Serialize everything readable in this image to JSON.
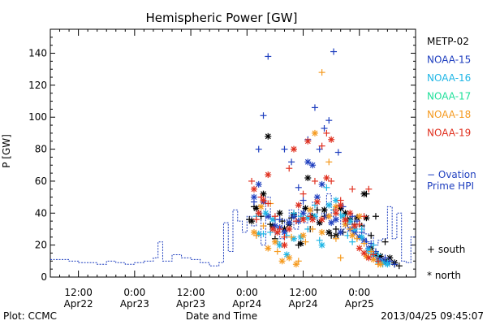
{
  "chart_data": {
    "type": "scatter",
    "title": "Hemispheric Power [GW]",
    "ylabel": "P [GW]",
    "xlabel": "Date and Time",
    "ylim": [
      0,
      155
    ],
    "yticks": [
      0,
      20,
      40,
      60,
      80,
      100,
      120,
      140
    ],
    "xlim_hours": [
      -18,
      60
    ],
    "xticks": [
      {
        "t": -12,
        "line1": "12:00",
        "line2": "Apr22"
      },
      {
        "t": 0,
        "line1": "0:00",
        "line2": "Apr23"
      },
      {
        "t": 12,
        "line1": "12:00",
        "line2": "Apr23"
      },
      {
        "t": 24,
        "line1": "0:00",
        "line2": "Apr24"
      },
      {
        "t": 36,
        "line1": "12:00",
        "line2": "Apr24"
      },
      {
        "t": 48,
        "line1": "0:00",
        "line2": "Apr25"
      }
    ],
    "legend": [
      {
        "name": "METP-02",
        "color": "#000000"
      },
      {
        "name": "NOAA-15",
        "color": "#1f3fbf"
      },
      {
        "name": "NOAA-16",
        "color": "#1fb6e6"
      },
      {
        "name": "NOAA-17",
        "color": "#1fe09a"
      },
      {
        "name": "NOAA-18",
        "color": "#f59a1f"
      },
      {
        "name": "NOAA-19",
        "color": "#e0301f"
      }
    ],
    "ovation": {
      "name": "− Ovation\nPrime HPI",
      "line1": "− Ovation",
      "line2": "Prime HPI",
      "color": "#1f3fbf",
      "steps": [
        [
          -18,
          11
        ],
        [
          -14,
          10
        ],
        [
          -12,
          9
        ],
        [
          -10,
          9
        ],
        [
          -8,
          8
        ],
        [
          -6,
          10
        ],
        [
          -4,
          9
        ],
        [
          -2,
          8
        ],
        [
          0,
          9
        ],
        [
          2,
          10
        ],
        [
          4,
          12
        ],
        [
          5,
          22
        ],
        [
          6,
          10
        ],
        [
          8,
          14
        ],
        [
          10,
          12
        ],
        [
          12,
          11
        ],
        [
          14,
          9
        ],
        [
          16,
          7
        ],
        [
          18,
          9
        ],
        [
          19,
          34
        ],
        [
          20,
          16
        ],
        [
          21,
          42
        ],
        [
          22,
          35
        ],
        [
          23,
          28
        ],
        [
          24,
          38
        ],
        [
          25,
          32
        ],
        [
          26,
          44
        ],
        [
          27,
          20
        ],
        [
          28,
          50
        ],
        [
          29,
          36
        ],
        [
          30,
          27
        ],
        [
          31,
          24
        ],
        [
          32,
          36
        ],
        [
          33,
          42
        ],
        [
          34,
          30
        ],
        [
          35,
          46
        ],
        [
          36,
          34
        ],
        [
          37,
          40
        ],
        [
          38,
          47
        ],
        [
          39,
          33
        ],
        [
          40,
          40
        ],
        [
          41,
          52
        ],
        [
          42,
          38
        ],
        [
          43,
          45
        ],
        [
          44,
          30
        ],
        [
          45,
          40
        ],
        [
          46,
          34
        ],
        [
          47,
          36
        ],
        [
          48,
          33
        ],
        [
          49,
          27
        ],
        [
          50,
          26
        ],
        [
          51,
          20
        ],
        [
          52,
          23
        ],
        [
          53,
          24
        ],
        [
          54,
          44
        ],
        [
          55,
          24
        ],
        [
          56,
          40
        ],
        [
          57,
          10
        ],
        [
          58,
          9
        ],
        [
          59,
          25
        ]
      ]
    },
    "series": [
      {
        "name": "METP-02",
        "color": "#000000",
        "plus": [
          [
            24.5,
            36
          ],
          [
            25.5,
            44
          ],
          [
            27,
            38
          ],
          [
            29,
            33
          ],
          [
            30,
            24
          ],
          [
            31.5,
            35
          ],
          [
            33.5,
            37
          ],
          [
            35,
            20
          ],
          [
            36,
            37
          ],
          [
            37.5,
            30
          ],
          [
            39,
            42
          ],
          [
            40.5,
            38
          ],
          [
            42,
            26
          ],
          [
            43,
            30
          ],
          [
            44.5,
            28
          ],
          [
            45.5,
            36
          ],
          [
            47,
            33
          ],
          [
            48.5,
            32
          ],
          [
            49.5,
            52
          ],
          [
            50.5,
            26
          ],
          [
            51.5,
            38
          ],
          [
            52.5,
            12
          ],
          [
            53.5,
            22
          ],
          [
            54.5,
            10
          ],
          [
            55.5,
            8
          ],
          [
            56.5,
            7
          ]
        ],
        "star": [
          [
            25,
            35
          ],
          [
            26,
            43
          ],
          [
            27.5,
            52
          ],
          [
            28.5,
            88
          ],
          [
            29.5,
            32
          ],
          [
            31,
            40
          ],
          [
            32,
            30
          ],
          [
            33,
            33
          ],
          [
            34,
            39
          ],
          [
            35.5,
            21
          ],
          [
            36.5,
            43
          ],
          [
            37,
            62
          ],
          [
            38,
            38
          ],
          [
            39.5,
            34
          ],
          [
            40.5,
            42
          ],
          [
            41.5,
            28
          ],
          [
            43,
            26
          ],
          [
            44,
            43
          ],
          [
            45,
            40
          ],
          [
            46,
            36
          ],
          [
            47.5,
            37
          ],
          [
            49,
            52
          ],
          [
            49.5,
            37
          ],
          [
            50.5,
            18
          ],
          [
            51.5,
            14
          ],
          [
            52.5,
            13
          ],
          [
            53.5,
            10
          ],
          [
            54.5,
            12
          ],
          [
            55.5,
            9
          ]
        ]
      },
      {
        "name": "NOAA-15",
        "color": "#1f3fbf",
        "plus": [
          [
            25.5,
            47
          ],
          [
            26.5,
            80
          ],
          [
            27.5,
            101
          ],
          [
            28.5,
            138
          ],
          [
            30,
            36
          ],
          [
            31,
            36
          ],
          [
            32,
            80
          ],
          [
            33.5,
            72
          ],
          [
            35,
            56
          ],
          [
            36,
            48
          ],
          [
            37,
            86
          ],
          [
            38.5,
            106
          ],
          [
            39.5,
            80
          ],
          [
            40.5,
            93
          ],
          [
            41.5,
            98
          ],
          [
            42.5,
            141
          ],
          [
            43.5,
            78
          ],
          [
            44.5,
            44
          ],
          [
            45.5,
            33
          ],
          [
            46.5,
            38
          ],
          [
            47.5,
            35
          ],
          [
            48.5,
            28
          ],
          [
            49.5,
            22
          ],
          [
            50.5,
            21
          ],
          [
            51.5,
            16
          ],
          [
            52.5,
            10
          ],
          [
            53.5,
            12
          ],
          [
            54.5,
            10
          ],
          [
            55.5,
            8
          ]
        ],
        "star": [
          [
            25.5,
            50
          ],
          [
            26.5,
            58
          ],
          [
            27.5,
            47
          ],
          [
            28.5,
            38
          ],
          [
            30,
            32
          ],
          [
            31,
            31
          ],
          [
            32,
            28
          ],
          [
            33,
            34
          ],
          [
            34,
            38
          ],
          [
            35,
            35
          ],
          [
            36,
            40
          ],
          [
            37,
            72
          ],
          [
            38,
            70
          ],
          [
            39,
            50
          ],
          [
            40,
            58
          ],
          [
            41,
            38
          ],
          [
            42,
            34
          ],
          [
            43,
            36
          ],
          [
            44,
            28
          ],
          [
            45,
            33
          ],
          [
            46,
            30
          ],
          [
            47,
            28
          ],
          [
            48,
            25
          ],
          [
            49,
            23
          ],
          [
            50,
            18
          ],
          [
            51,
            14
          ],
          [
            52,
            11
          ],
          [
            53,
            10
          ],
          [
            54,
            9
          ]
        ]
      },
      {
        "name": "NOAA-16",
        "color": "#1fb6e6",
        "plus": [
          [
            26,
            38
          ],
          [
            27.5,
            27
          ],
          [
            29,
            28
          ],
          [
            30.5,
            22
          ],
          [
            32.5,
            26
          ],
          [
            34,
            40
          ],
          [
            35.5,
            38
          ],
          [
            37,
            30
          ],
          [
            38.5,
            45
          ],
          [
            39.5,
            23
          ],
          [
            41,
            56
          ],
          [
            42.5,
            42
          ],
          [
            44,
            39
          ],
          [
            45.5,
            26
          ],
          [
            46.5,
            22
          ],
          [
            48.5,
            30
          ],
          [
            50,
            15
          ],
          [
            51,
            20
          ],
          [
            52,
            14
          ],
          [
            53,
            8
          ],
          [
            54,
            9
          ]
        ],
        "star": [
          [
            26.5,
            27
          ],
          [
            28,
            40
          ],
          [
            29.5,
            36
          ],
          [
            31,
            20
          ],
          [
            32.5,
            14
          ],
          [
            34,
            24
          ],
          [
            35.5,
            25
          ],
          [
            37,
            37
          ],
          [
            38.5,
            38
          ],
          [
            40,
            20
          ],
          [
            41.5,
            45
          ],
          [
            43,
            48
          ],
          [
            44.5,
            38
          ],
          [
            46,
            35
          ],
          [
            47,
            30
          ],
          [
            48.5,
            25
          ],
          [
            50,
            17
          ],
          [
            51,
            14
          ],
          [
            52,
            10
          ],
          [
            53,
            9
          ],
          [
            54,
            8
          ]
        ]
      },
      {
        "name": "NOAA-17",
        "color": "#1fe09a",
        "plus": [],
        "star": []
      },
      {
        "name": "NOAA-18",
        "color": "#f59a1f",
        "plus": [
          [
            26,
            26
          ],
          [
            27.5,
            32
          ],
          [
            29,
            46
          ],
          [
            30.5,
            16
          ],
          [
            32,
            20
          ],
          [
            33.5,
            25
          ],
          [
            35,
            10
          ],
          [
            36.5,
            22
          ],
          [
            38,
            30
          ],
          [
            40,
            128
          ],
          [
            41.5,
            72
          ],
          [
            43,
            24
          ],
          [
            44,
            12
          ],
          [
            46,
            30
          ],
          [
            47.5,
            24
          ],
          [
            49,
            21
          ],
          [
            50.5,
            16
          ],
          [
            52,
            8
          ]
        ],
        "star": [
          [
            25.5,
            28
          ],
          [
            27,
            44
          ],
          [
            28.5,
            18
          ],
          [
            30,
            22
          ],
          [
            31.5,
            10
          ],
          [
            33,
            12
          ],
          [
            34.5,
            8
          ],
          [
            36,
            26
          ],
          [
            37.5,
            42
          ],
          [
            38.5,
            90
          ],
          [
            40,
            28
          ],
          [
            41.5,
            38
          ],
          [
            43,
            44
          ],
          [
            45,
            33
          ],
          [
            46.5,
            26
          ],
          [
            48,
            38
          ],
          [
            49.5,
            13
          ],
          [
            51,
            11
          ],
          [
            52.5,
            8
          ]
        ]
      },
      {
        "name": "NOAA-19",
        "color": "#e0301f",
        "plus": [
          [
            25,
            60
          ],
          [
            26,
            36
          ],
          [
            27,
            50
          ],
          [
            28.5,
            46
          ],
          [
            30,
            38
          ],
          [
            31,
            30
          ],
          [
            32,
            25
          ],
          [
            33,
            68
          ],
          [
            34.5,
            35
          ],
          [
            36,
            52
          ],
          [
            37.5,
            38
          ],
          [
            38.5,
            60
          ],
          [
            40,
            82
          ],
          [
            41,
            90
          ],
          [
            42,
            60
          ],
          [
            43,
            42
          ],
          [
            44,
            48
          ],
          [
            45,
            35
          ],
          [
            46.5,
            55
          ],
          [
            48,
            33
          ],
          [
            49,
            38
          ],
          [
            50,
            55
          ],
          [
            51,
            14
          ],
          [
            52,
            10
          ]
        ],
        "star": [
          [
            25.5,
            55
          ],
          [
            26.5,
            40
          ],
          [
            27.5,
            48
          ],
          [
            28.5,
            64
          ],
          [
            29.5,
            30
          ],
          [
            30.5,
            28
          ],
          [
            32,
            20
          ],
          [
            33,
            30
          ],
          [
            34,
            80
          ],
          [
            35,
            45
          ],
          [
            36,
            36
          ],
          [
            37,
            85
          ],
          [
            38,
            36
          ],
          [
            39,
            47
          ],
          [
            40,
            36
          ],
          [
            41,
            62
          ],
          [
            42,
            86
          ],
          [
            43,
            40
          ],
          [
            44,
            45
          ],
          [
            45,
            36
          ],
          [
            46,
            40
          ],
          [
            47,
            32
          ],
          [
            48,
            18
          ],
          [
            49,
            15
          ],
          [
            50,
            12
          ]
        ]
      }
    ],
    "marker_key": {
      "plus_label": "+ south",
      "star_label": "* north"
    },
    "legend_placement": "right",
    "grid": false
  },
  "footer": {
    "plot_credit": "Plot: CCMC",
    "timestamp": "2013/04/25 09:45:07"
  }
}
